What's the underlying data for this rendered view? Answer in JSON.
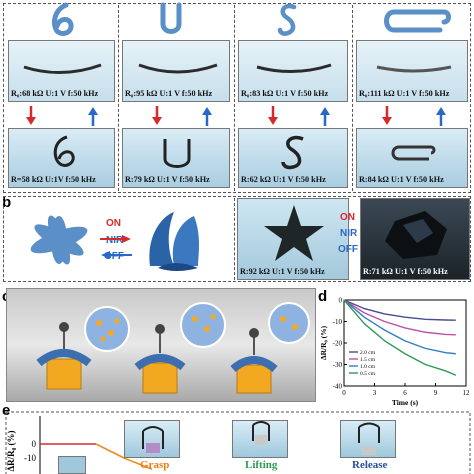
{
  "panels": {
    "b": {
      "letter": "b",
      "on": "ON",
      "nir": "NIR",
      "off": "OFF",
      "cap1": "R:92 kΩ  U:1 V  f:50 kHz",
      "cap2": "R:71 kΩ  U:1 V  f:50 kHz"
    },
    "c": {
      "letter": "c"
    },
    "d": {
      "letter": "d"
    },
    "e": {
      "letter": "e",
      "grasp": "Grasp",
      "lifting": "Lifting",
      "release": "Release",
      "ylabel": "ΔR/R₀ (%)",
      "ytick0": "0",
      "ytickm10": "-10"
    }
  },
  "shapes": [
    {
      "glyph": "6",
      "top_caption": "R₀:68 kΩ  U:1 V  f:50 kHz",
      "bottom_caption": "R=58 kΩ  U:1V  f:50 kHz"
    },
    {
      "glyph": "U",
      "top_caption": "R₀:95 kΩ  U:1 V  f:50 kHz",
      "bottom_caption": "R:79 kΩ  U:1 V  f:50 kHz"
    },
    {
      "glyph": "S",
      "top_caption": "R₀:83 kΩ  U:1 V  f:50 kHz",
      "bottom_caption": "R:62 kΩ  U:1 V  f:50 kHz"
    },
    {
      "glyph": "C",
      "top_caption": "R₀:111 kΩ  U:1 V  f:50 kHz",
      "bottom_caption": "R:84 kΩ  U:1 V  f:50 kHz"
    }
  ],
  "colors": {
    "accent_red": "#d62a2a",
    "accent_blue": "#2a68c8",
    "strip_blue": "#5b8fc7"
  },
  "chart_data": {
    "type": "line",
    "xlabel": "Time (s)",
    "ylabel": "ΔR/R₀ (%)",
    "x_ticks": [
      0,
      3,
      6,
      9,
      12
    ],
    "y_ticks": [
      0,
      -10,
      -20,
      -30,
      -40
    ],
    "xlim": [
      0,
      12
    ],
    "ylim": [
      -40,
      0
    ],
    "legend_position": "bottom-left",
    "series": [
      {
        "name": "2.0 cm",
        "color": "#4a4a9a",
        "x": [
          0,
          2,
          4,
          6,
          8,
          10,
          11
        ],
        "y": [
          0,
          -4,
          -6.5,
          -8,
          -9,
          -9.3,
          -9.4
        ]
      },
      {
        "name": "1.5 cm",
        "color": "#c04fa8",
        "x": [
          0,
          2,
          4,
          6,
          8,
          10,
          11
        ],
        "y": [
          0,
          -6,
          -10,
          -13,
          -15,
          -16,
          -16.2
        ]
      },
      {
        "name": "1.0 cm",
        "color": "#2f7fbf",
        "x": [
          0,
          2,
          4,
          6,
          8,
          10,
          11
        ],
        "y": [
          0,
          -8,
          -14,
          -19,
          -22.5,
          -24.5,
          -25
        ]
      },
      {
        "name": "0.5 cm",
        "color": "#2e9a55",
        "x": [
          0,
          2,
          4,
          6,
          8,
          10,
          11
        ],
        "y": [
          0,
          -11,
          -19,
          -25,
          -30,
          -33,
          -35
        ]
      }
    ]
  },
  "bottom_chart": {
    "series": [
      {
        "color": "#d62a2a",
        "x": [
          0,
          0.2,
          0.4
        ],
        "y": [
          0,
          0,
          0
        ]
      },
      {
        "color": "#f08a1a",
        "x": [
          0.4,
          0.6,
          0.8
        ],
        "y": [
          0,
          -10,
          -18
        ]
      }
    ]
  }
}
